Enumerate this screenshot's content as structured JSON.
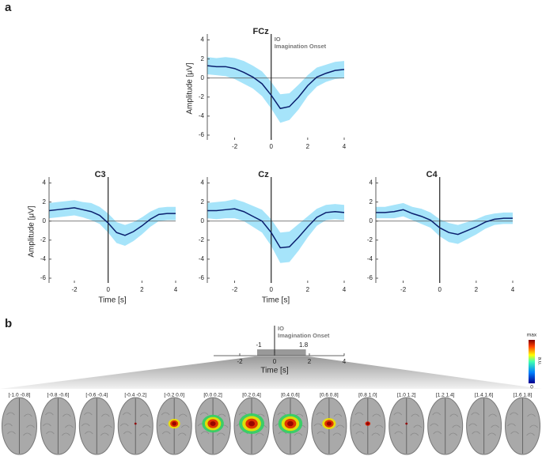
{
  "panels": [
    "a",
    "b"
  ],
  "chart_data": [
    {
      "type": "line-band",
      "title": "FCz",
      "ylabel": "Amplitude [μV]",
      "annotation": [
        "IO",
        "Imagination Onset"
      ],
      "x": [
        -3.5,
        -3,
        -2.5,
        -2,
        -1.5,
        -1,
        -0.5,
        0,
        0.5,
        1,
        1.5,
        2,
        2.5,
        3,
        3.5,
        4
      ],
      "values": [
        1.3,
        1.2,
        1.2,
        1.0,
        0.6,
        0.1,
        -0.6,
        -1.8,
        -3.2,
        -3.0,
        -2.0,
        -0.8,
        0.1,
        0.5,
        0.8,
        0.9
      ],
      "errors": [
        0.9,
        0.9,
        1.0,
        1.1,
        1.2,
        1.2,
        1.3,
        1.4,
        1.5,
        1.4,
        1.3,
        1.1,
        1.0,
        0.9,
        0.9,
        0.9
      ],
      "color": "#0a1f6e",
      "band_color": "#a6e4fa",
      "xlim": [
        -3.5,
        4
      ],
      "ylim": [
        -6.5,
        4.3
      ],
      "xticks": [
        -2,
        0,
        2,
        4
      ],
      "yticks": [
        4,
        2,
        0,
        -2,
        -4,
        -6
      ]
    },
    {
      "type": "line-band",
      "title": "C3",
      "ylabel": "Amplitude [μV]",
      "xlabel": "Time [s]",
      "x": [
        -3.5,
        -3,
        -2.5,
        -2,
        -1.5,
        -1,
        -0.5,
        0,
        0.5,
        1,
        1.5,
        2,
        2.5,
        3,
        3.5,
        4
      ],
      "values": [
        1.1,
        1.2,
        1.3,
        1.4,
        1.2,
        1.0,
        0.6,
        -0.2,
        -1.2,
        -1.5,
        -1.1,
        -0.5,
        0.2,
        0.7,
        0.8,
        0.8
      ],
      "errors": [
        0.8,
        0.8,
        0.8,
        0.8,
        0.8,
        0.9,
        0.9,
        1.0,
        1.1,
        1.1,
        1.0,
        0.9,
        0.8,
        0.7,
        0.7,
        0.7
      ],
      "color": "#0a1f6e",
      "band_color": "#a6e4fa",
      "xlim": [
        -3.5,
        4
      ],
      "ylim": [
        -6.5,
        4.3
      ],
      "xticks": [
        -2,
        0,
        2,
        4
      ],
      "yticks": [
        4,
        2,
        0,
        -2,
        -4,
        -6
      ]
    },
    {
      "type": "line-band",
      "title": "Cz",
      "xlabel": "Time [s]",
      "x": [
        -3.5,
        -3,
        -2.5,
        -2,
        -1.5,
        -1,
        -0.5,
        0,
        0.5,
        1,
        1.5,
        2,
        2.5,
        3,
        3.5,
        4
      ],
      "values": [
        1.1,
        1.1,
        1.2,
        1.3,
        1.0,
        0.5,
        0.0,
        -1.2,
        -2.8,
        -2.7,
        -1.7,
        -0.6,
        0.4,
        0.9,
        1.0,
        0.9
      ],
      "errors": [
        0.8,
        0.9,
        0.9,
        1.0,
        1.0,
        1.1,
        1.2,
        1.4,
        1.6,
        1.6,
        1.4,
        1.1,
        0.9,
        0.8,
        0.8,
        0.8
      ],
      "color": "#0a1f6e",
      "band_color": "#a6e4fa",
      "xlim": [
        -3.5,
        4
      ],
      "ylim": [
        -6.5,
        4.3
      ],
      "xticks": [
        -2,
        0,
        2,
        4
      ],
      "yticks": [
        4,
        2,
        0,
        -2,
        -4,
        -6
      ]
    },
    {
      "type": "line-band",
      "title": "C4",
      "x": [
        -3.5,
        -3,
        -2.5,
        -2,
        -1.5,
        -1,
        -0.5,
        0,
        0.5,
        1,
        1.5,
        2,
        2.5,
        3,
        3.5,
        4
      ],
      "values": [
        0.9,
        0.9,
        1.0,
        1.2,
        0.8,
        0.5,
        0.1,
        -0.7,
        -1.2,
        -1.4,
        -1.0,
        -0.6,
        -0.1,
        0.2,
        0.3,
        0.3
      ],
      "errors": [
        0.6,
        0.6,
        0.7,
        0.7,
        0.7,
        0.8,
        0.8,
        0.9,
        1.0,
        1.0,
        0.9,
        0.8,
        0.7,
        0.6,
        0.6,
        0.6
      ],
      "color": "#0a1f6e",
      "band_color": "#a6e4fa",
      "xlim": [
        -3.5,
        4
      ],
      "ylim": [
        -6.5,
        4.3
      ],
      "xticks": [
        -2,
        0,
        2,
        4
      ],
      "yticks": [
        4,
        2,
        0,
        -2,
        -4,
        -6
      ]
    },
    {
      "type": "interval",
      "xlabel": "Time [s]",
      "annotation": [
        "IO",
        "Imagination Onset"
      ],
      "interval": [
        -1,
        1.8
      ],
      "interval_labels": [
        "-1",
        "1.8"
      ],
      "color": "#999999",
      "xlim": [
        -3.5,
        4
      ],
      "xticks": [
        -2,
        0,
        2,
        4
      ]
    },
    {
      "type": "topomap",
      "colorbar_labels": [
        "max",
        "0"
      ],
      "colorbar_unit": "a.u.",
      "categories": [
        "[-1.0 -0.8]",
        "[-0.8 -0.6]",
        "[-0.6 -0.4]",
        "[-0.4 -0.2]",
        "[-0.2 0.0]",
        "[0.0 0.2]",
        "[0.2 0.4]",
        "[0.4 0.6]",
        "[0.6 0.8]",
        "[0.8 1.0]",
        "[1.0 1.2]",
        "[1.2 1.4]",
        "[1.4 1.6]",
        "[1.6 1.8]"
      ],
      "values": [
        0,
        0,
        0,
        0.15,
        0.6,
        0.85,
        1,
        0.95,
        0.7,
        0.35,
        0.15,
        0,
        0,
        0
      ]
    }
  ]
}
